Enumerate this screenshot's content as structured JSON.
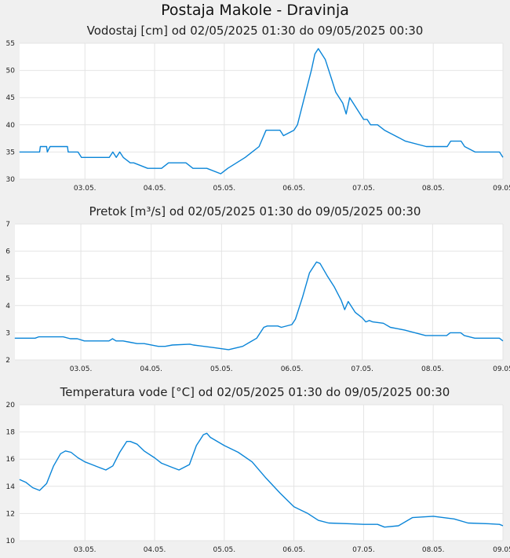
{
  "page": {
    "title": "Postaja Makole - Dravinja"
  },
  "chart_data": [
    {
      "type": "line",
      "title": "Vodostaj [cm] od 02/05/2025 01:30 do 09/05/2025 00:30",
      "xlabel": "",
      "ylabel": "",
      "ylim": [
        30,
        55
      ],
      "yticks": [
        30,
        35,
        40,
        45,
        50,
        55
      ],
      "xlim": [
        0.0625,
        7.0
      ],
      "xticks": [
        {
          "x": 1,
          "label": "03.05."
        },
        {
          "x": 2,
          "label": "04.05."
        },
        {
          "x": 3,
          "label": "05.05."
        },
        {
          "x": 4,
          "label": "06.05."
        },
        {
          "x": 5,
          "label": "07.05."
        },
        {
          "x": 6,
          "label": "08.05."
        },
        {
          "x": 7,
          "label": "09.05"
        }
      ],
      "color": "#0a85d8",
      "series": [
        {
          "name": "Vodostaj",
          "x": [
            0.06,
            0.35,
            0.36,
            0.45,
            0.46,
            0.5,
            0.55,
            0.75,
            0.76,
            0.9,
            0.95,
            1.05,
            1.1,
            1.35,
            1.4,
            1.45,
            1.5,
            1.55,
            1.65,
            1.7,
            1.9,
            2.1,
            2.2,
            2.3,
            2.45,
            2.55,
            2.65,
            2.75,
            2.95,
            3.05,
            3.3,
            3.4,
            3.5,
            3.6,
            3.65,
            3.8,
            3.85,
            4.0,
            4.05,
            4.15,
            4.25,
            4.3,
            4.35,
            4.45,
            4.55,
            4.6,
            4.7,
            4.75,
            4.8,
            4.9,
            5.0,
            5.05,
            5.1,
            5.2,
            5.3,
            5.45,
            5.6,
            5.9,
            6.2,
            6.25,
            6.4,
            6.45,
            6.6,
            6.95,
            7.0
          ],
          "values": [
            35,
            35,
            36,
            36,
            35,
            36,
            36,
            36,
            35,
            35,
            34,
            34,
            34,
            34,
            35,
            34,
            35,
            34,
            33,
            33,
            32,
            32,
            33,
            33,
            33,
            32,
            32,
            32,
            31,
            32,
            34,
            35,
            36,
            39,
            39,
            39,
            38,
            39,
            40,
            45,
            50,
            53,
            54,
            52,
            48,
            46,
            44,
            42,
            45,
            43,
            41,
            41,
            40,
            40,
            39,
            38,
            37,
            36,
            36,
            37,
            37,
            36,
            35,
            35,
            34
          ]
        }
      ]
    },
    {
      "type": "line",
      "title": "Pretok [m³/s] od 02/05/2025 01:30 do 09/05/2025 00:30",
      "xlabel": "",
      "ylabel": "",
      "ylim": [
        2,
        7
      ],
      "yticks": [
        2,
        3,
        4,
        5,
        6,
        7
      ],
      "xlim": [
        0.0625,
        7.0
      ],
      "xticks": [
        {
          "x": 1,
          "label": "03.05."
        },
        {
          "x": 2,
          "label": "04.05."
        },
        {
          "x": 3,
          "label": "05.05."
        },
        {
          "x": 4,
          "label": "06.05."
        },
        {
          "x": 5,
          "label": "07.05."
        },
        {
          "x": 6,
          "label": "08.05."
        },
        {
          "x": 7,
          "label": "09.05"
        }
      ],
      "color": "#0a85d8",
      "series": [
        {
          "name": "Pretok",
          "x": [
            0.06,
            0.35,
            0.4,
            0.75,
            0.85,
            0.95,
            1.05,
            1.4,
            1.45,
            1.5,
            1.6,
            1.7,
            1.8,
            1.9,
            2.1,
            2.2,
            2.3,
            2.55,
            2.6,
            2.9,
            3.1,
            3.3,
            3.4,
            3.5,
            3.6,
            3.65,
            3.8,
            3.85,
            4.0,
            4.05,
            4.15,
            4.25,
            4.35,
            4.4,
            4.5,
            4.6,
            4.7,
            4.75,
            4.8,
            4.9,
            5.0,
            5.05,
            5.1,
            5.15,
            5.3,
            5.4,
            5.6,
            5.9,
            6.2,
            6.25,
            6.4,
            6.45,
            6.6,
            6.95,
            7.0
          ],
          "values": [
            2.8,
            2.8,
            2.85,
            2.85,
            2.78,
            2.78,
            2.7,
            2.7,
            2.78,
            2.7,
            2.7,
            2.65,
            2.6,
            2.6,
            2.5,
            2.5,
            2.55,
            2.58,
            2.55,
            2.45,
            2.38,
            2.5,
            2.65,
            2.8,
            3.2,
            3.25,
            3.25,
            3.2,
            3.3,
            3.5,
            4.3,
            5.2,
            5.6,
            5.55,
            5.1,
            4.7,
            4.2,
            3.85,
            4.15,
            3.75,
            3.55,
            3.4,
            3.45,
            3.4,
            3.35,
            3.2,
            3.1,
            2.9,
            2.9,
            3.0,
            3.0,
            2.9,
            2.8,
            2.8,
            2.7
          ]
        }
      ]
    },
    {
      "type": "line",
      "title": "Temperatura vode [°C] od 02/05/2025 01:30 do 09/05/2025 00:30",
      "xlabel": "",
      "ylabel": "",
      "ylim": [
        10,
        20
      ],
      "yticks": [
        10,
        12,
        14,
        16,
        18,
        20
      ],
      "xlim": [
        0.0625,
        7.0
      ],
      "xticks": [
        {
          "x": 1,
          "label": "03.05."
        },
        {
          "x": 2,
          "label": "04.05."
        },
        {
          "x": 3,
          "label": "05.05."
        },
        {
          "x": 4,
          "label": "06.05."
        },
        {
          "x": 5,
          "label": "07.05."
        },
        {
          "x": 6,
          "label": "08.05."
        },
        {
          "x": 7,
          "label": "09.05"
        }
      ],
      "color": "#0a85d8",
      "series": [
        {
          "name": "Temperatura vode",
          "x": [
            0.06,
            0.15,
            0.25,
            0.35,
            0.45,
            0.55,
            0.65,
            0.72,
            0.8,
            0.9,
            1.0,
            1.1,
            1.2,
            1.3,
            1.4,
            1.5,
            1.6,
            1.65,
            1.75,
            1.85,
            2.0,
            2.1,
            2.25,
            2.35,
            2.5,
            2.6,
            2.7,
            2.75,
            2.8,
            3.0,
            3.2,
            3.4,
            3.6,
            3.8,
            4.0,
            4.2,
            4.35,
            4.5,
            4.8,
            5.0,
            5.2,
            5.3,
            5.5,
            5.7,
            6.0,
            6.3,
            6.5,
            6.8,
            6.95,
            7.0
          ],
          "values": [
            14.5,
            14.3,
            13.9,
            13.7,
            14.2,
            15.5,
            16.4,
            16.6,
            16.5,
            16.1,
            15.8,
            15.6,
            15.4,
            15.2,
            15.5,
            16.5,
            17.3,
            17.3,
            17.1,
            16.6,
            16.1,
            15.7,
            15.4,
            15.2,
            15.6,
            17.0,
            17.8,
            17.9,
            17.6,
            17.0,
            16.5,
            15.8,
            14.6,
            13.5,
            12.5,
            12.0,
            11.5,
            11.3,
            11.25,
            11.2,
            11.2,
            11.0,
            11.1,
            11.7,
            11.8,
            11.6,
            11.3,
            11.25,
            11.2,
            11.1
          ]
        }
      ]
    }
  ]
}
